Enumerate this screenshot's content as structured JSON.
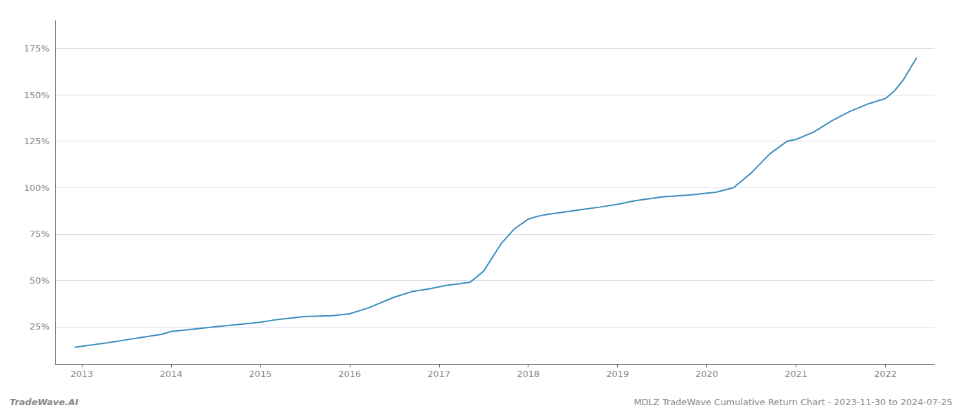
{
  "chart_data": {
    "type": "line",
    "title": "MDLZ TradeWave Cumulative Return Chart - 2023-11-30 to 2024-07-25",
    "annotations": [
      "TradeWave.AI"
    ],
    "color": "#3a8bbf",
    "grid": true,
    "x": [
      2012.92,
      2013.0,
      2013.15,
      2013.3,
      2013.5,
      2013.7,
      2013.9,
      2014.0,
      2014.2,
      2014.4,
      2014.6,
      2014.8,
      2015.0,
      2015.2,
      2015.5,
      2015.8,
      2016.0,
      2016.2,
      2016.5,
      2016.7,
      2016.9,
      2017.0,
      2017.05,
      2017.1,
      2017.2,
      2017.35,
      2017.5,
      2017.7,
      2017.85,
      2018.0,
      2018.1,
      2018.2,
      2018.35,
      2018.5,
      2018.65,
      2018.8,
      2019.0,
      2019.2,
      2019.5,
      2019.8,
      2019.9,
      2020.0,
      2020.1,
      2020.3,
      2020.5,
      2020.7,
      2020.9,
      2021.0,
      2021.2,
      2021.4,
      2021.6,
      2021.8,
      2022.0,
      2022.1,
      2022.2,
      2022.35
    ],
    "values": [
      14,
      14.5,
      15.5,
      16.5,
      18,
      19.5,
      21,
      22.5,
      23.5,
      24.5,
      25.5,
      26.5,
      27.5,
      29,
      30.5,
      31,
      32,
      35,
      41,
      44,
      45.5,
      46.5,
      47,
      47.5,
      48,
      49,
      55,
      70,
      78,
      83,
      84.5,
      85.5,
      86.5,
      87.5,
      88.5,
      89.5,
      91,
      93,
      95,
      96,
      96.5,
      97,
      97.5,
      100,
      108,
      118,
      125,
      126,
      130,
      136,
      141,
      145,
      148,
      152,
      158,
      170
    ],
    "xlim": [
      2012.7,
      2022.55
    ],
    "xticks": [
      2013,
      2014,
      2015,
      2016,
      2017,
      2018,
      2019,
      2020,
      2021,
      2022
    ],
    "ylim": [
      5,
      190
    ],
    "yticks": [
      {
        "value": 25,
        "label": "25%"
      },
      {
        "value": 50,
        "label": "50%"
      },
      {
        "value": 75,
        "label": "75%"
      },
      {
        "value": 100,
        "label": "100%"
      },
      {
        "value": 125,
        "label": "125%"
      },
      {
        "value": 150,
        "label": "150%"
      },
      {
        "value": 175,
        "label": "175%"
      }
    ]
  }
}
